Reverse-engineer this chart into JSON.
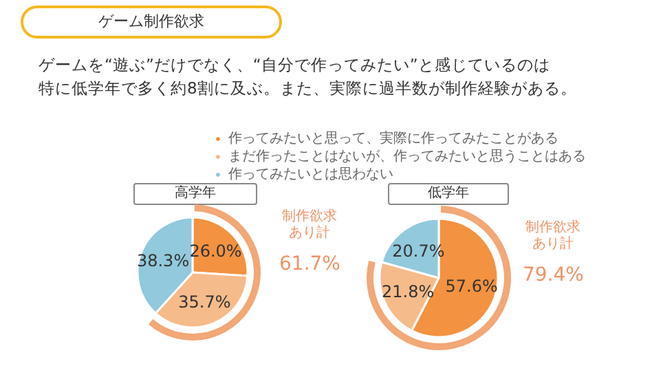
{
  "chart_data": [
    {
      "type": "pie",
      "title": "高学年",
      "annotations": [
        "ゲーム制作欲求",
        "ゲームを“遊ぶ”だけでなく、“自分で作ってみたい”と感じているのは",
        "特に低学年で多く約8割に及ぶ。また、実際に過半数が制作経験がある。",
        "制作欲求",
        "あり計",
        "61.7%"
      ],
      "categories": [
        "作ってみたいと思って、実際に作ってみたことがある",
        "まだ作ったことはないが、作ってみたいと思うことはある",
        "作ってみたいとは思わない"
      ],
      "values": [
        26.0,
        35.7,
        38.3
      ],
      "value_labels": [
        "26.0%",
        "35.7%",
        "38.3%"
      ],
      "colors": [
        "#f39240",
        "#f6bb8a",
        "#92c9dc"
      ],
      "legend": "top right"
    },
    {
      "type": "pie",
      "title": "低学年",
      "annotations": [
        "制作欲求",
        "あり計",
        "79.4%"
      ],
      "values": [
        57.6,
        21.8,
        20.7
      ],
      "value_labels": [
        "57.6%",
        "21.8%",
        "20.7%"
      ],
      "colors": [
        "#f39240",
        "#f6bb8a",
        "#92c9dc"
      ]
    }
  ]
}
